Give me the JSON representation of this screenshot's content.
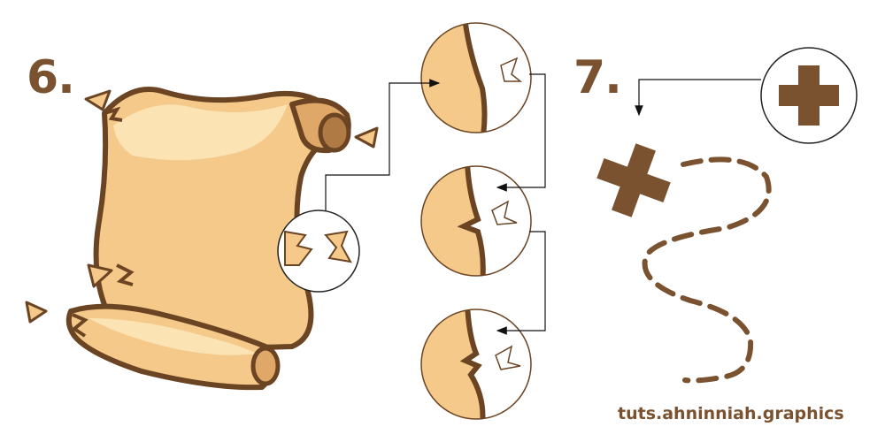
{
  "steps": {
    "first": "6.",
    "second": "7."
  },
  "credit": "tuts.ahninniah.graphics",
  "colors": {
    "brown": "#7a5230",
    "parchment": "#f4c98a",
    "parchment_light": "#fbe3b4",
    "outline": "#6b4423"
  }
}
